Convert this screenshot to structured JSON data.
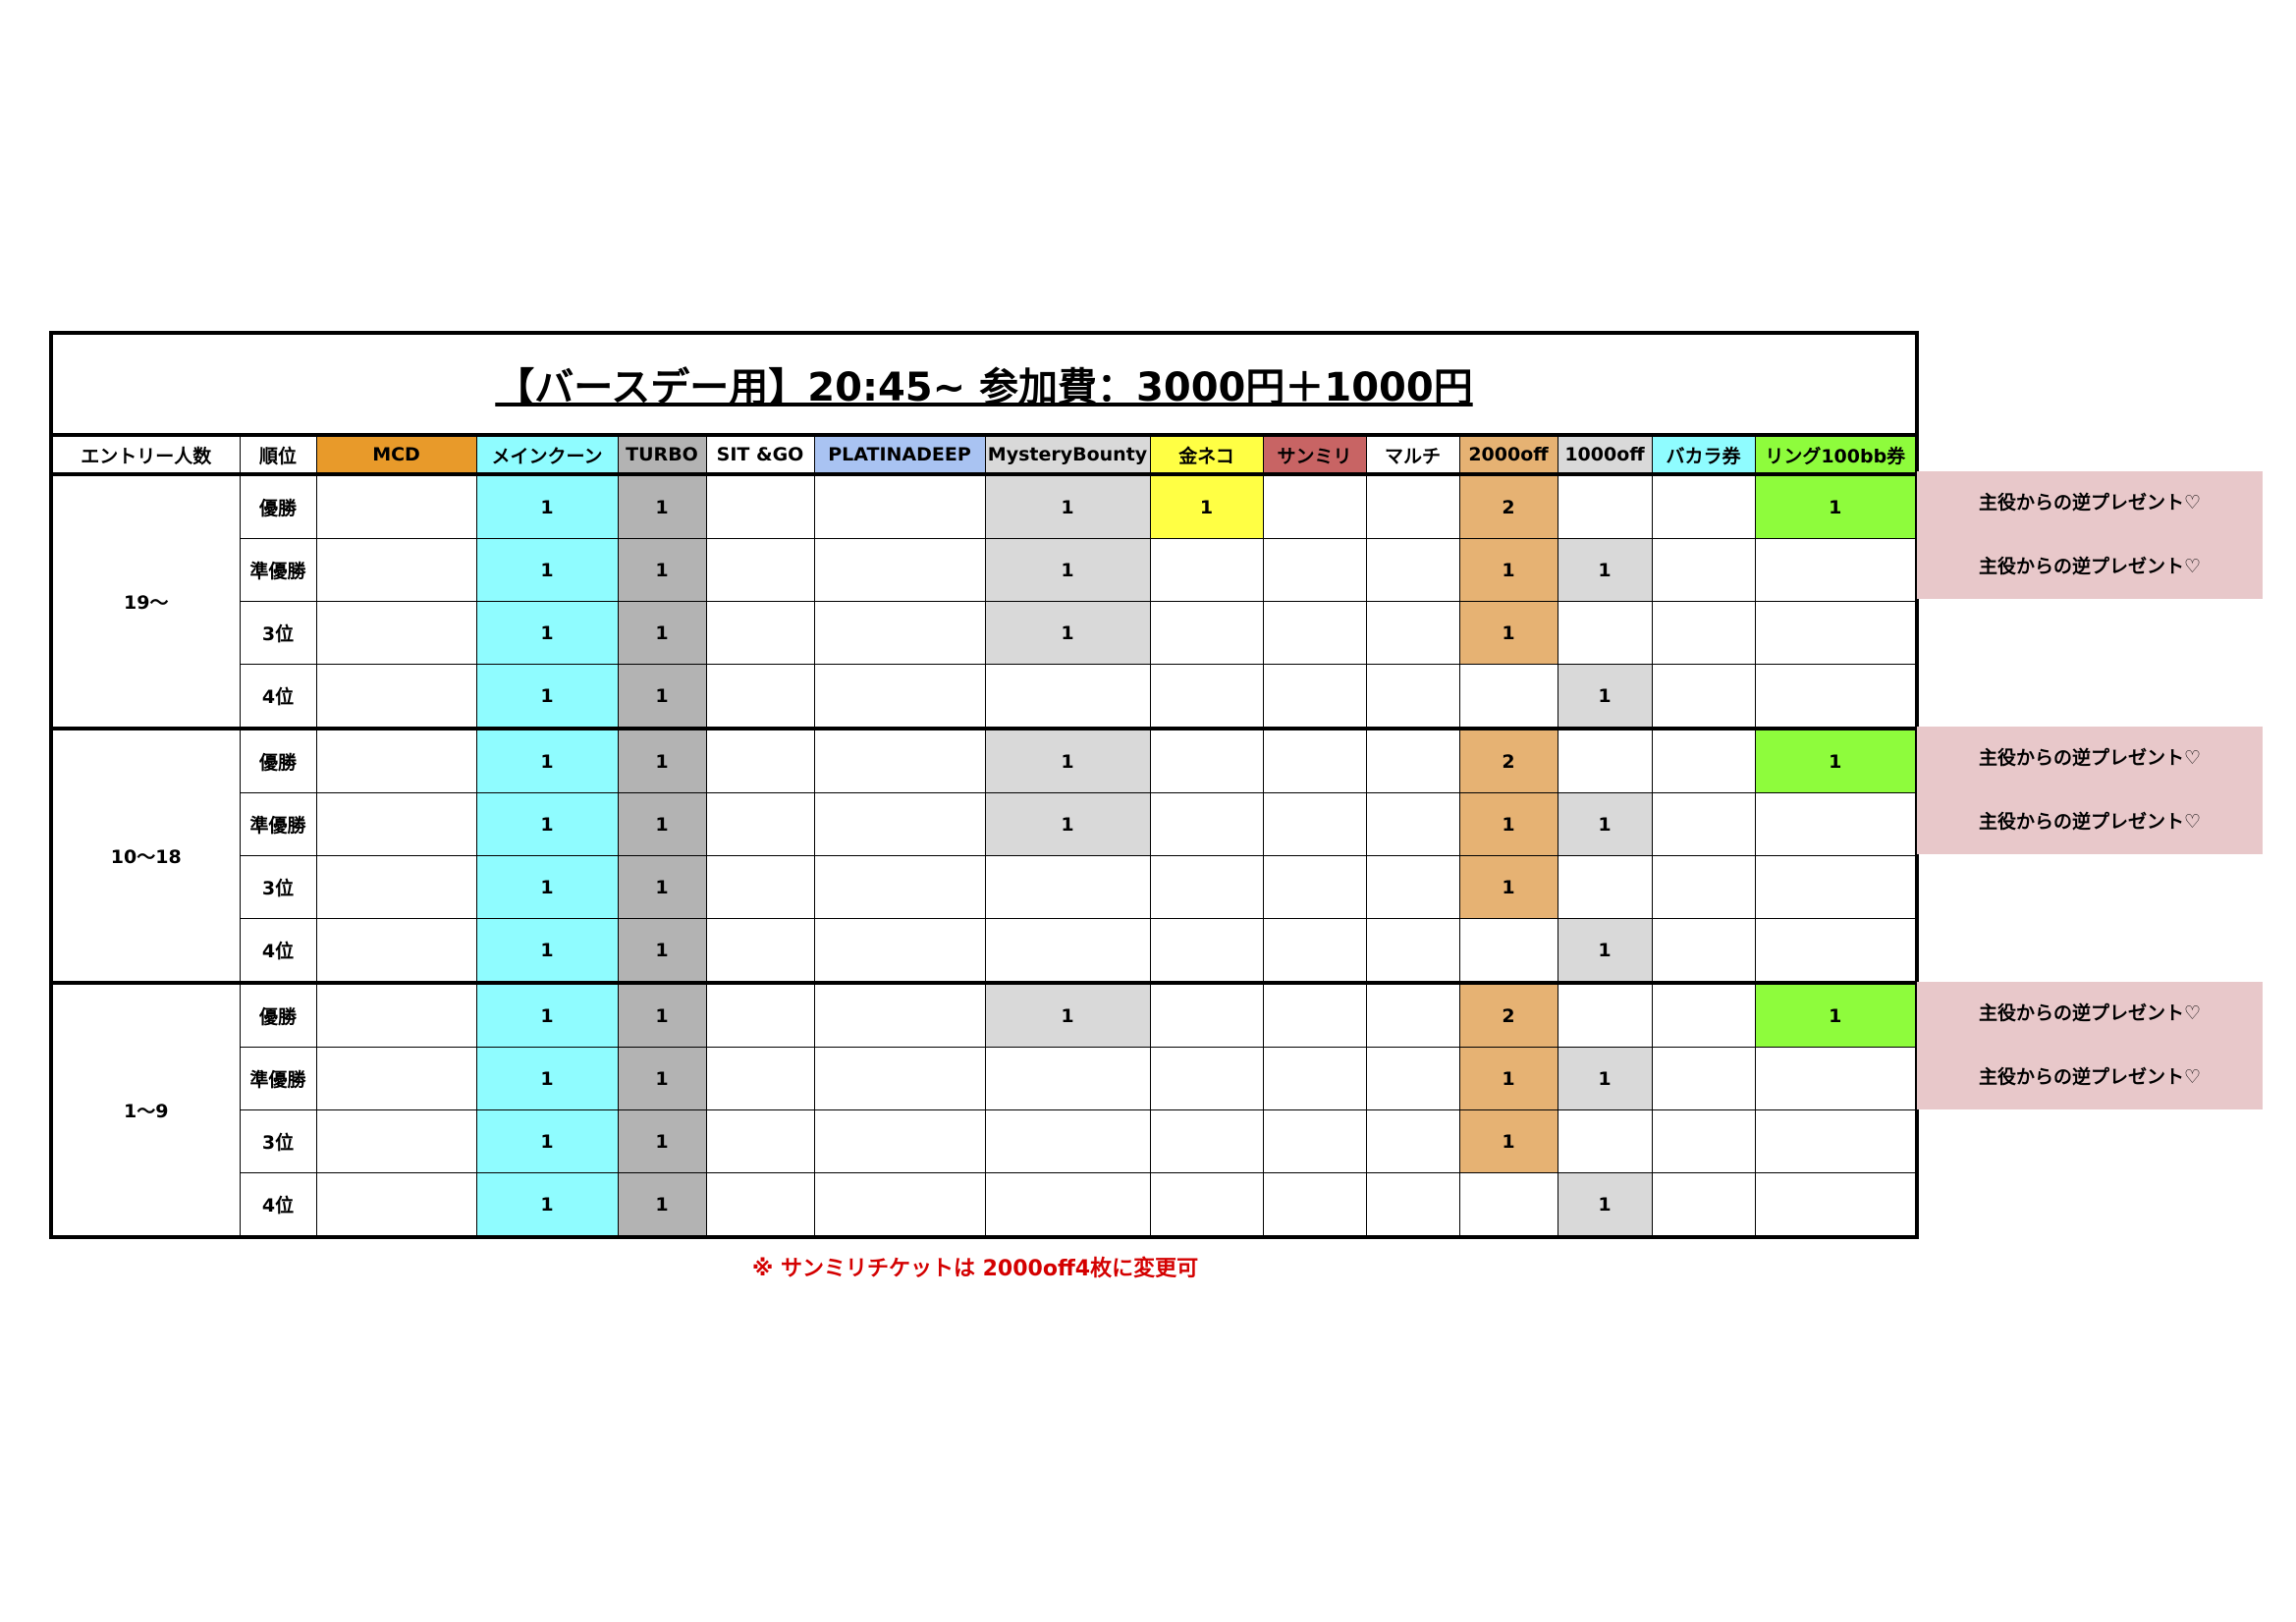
{
  "title": "【バースデー用】20:45~  参加費：3000円＋1000円",
  "headers": [
    "エントリー人数",
    "順位",
    "MCD",
    "メインクーン",
    "TURBO",
    "SIT &GO",
    "PLATINADEEP",
    "MysteryBounty",
    "金ネコ",
    "サンミリ",
    "マルチ",
    "2000off",
    "1000off",
    "バカラ券",
    "リング100bb券"
  ],
  "header_colors": [
    "#ffffff",
    "#ffffff",
    "#e89a2a",
    "#8ffcff",
    "#b3b3b3",
    "#ffffff",
    "#a9c3f2",
    "#d9d9d9",
    "#ffff44",
    "#c86464",
    "#ffffff",
    "#e6b273",
    "#d9d9d9",
    "#8ffcff",
    "#8efc3c"
  ],
  "value_colors": [
    "",
    "#8ffcff",
    "#b3b3b3",
    "",
    "",
    "#d9d9d9",
    "#ffff44",
    "",
    "",
    "#e6b273",
    "#d9d9d9",
    "",
    "#8efc3c"
  ],
  "always_colored_columns": [
    "メインクーン",
    "TURBO"
  ],
  "groups": [
    {
      "entry": "19～",
      "rows": [
        {
          "rank": "優勝",
          "cells": [
            "",
            "1",
            "1",
            "",
            "",
            "1",
            "1",
            "",
            "",
            "2",
            "",
            "",
            "1"
          ],
          "present": "主役からの逆プレゼント♡"
        },
        {
          "rank": "準優勝",
          "cells": [
            "",
            "1",
            "1",
            "",
            "",
            "1",
            "",
            "",
            "",
            "1",
            "1",
            "",
            ""
          ],
          "present": "主役からの逆プレゼント♡"
        },
        {
          "rank": "3位",
          "cells": [
            "",
            "1",
            "1",
            "",
            "",
            "1",
            "",
            "",
            "",
            "1",
            "",
            "",
            ""
          ]
        },
        {
          "rank": "4位",
          "cells": [
            "",
            "1",
            "1",
            "",
            "",
            "",
            "",
            "",
            "",
            "",
            "1",
            "",
            ""
          ]
        }
      ]
    },
    {
      "entry": "10～18",
      "rows": [
        {
          "rank": "優勝",
          "cells": [
            "",
            "1",
            "1",
            "",
            "",
            "1",
            "",
            "",
            "",
            "2",
            "",
            "",
            "1"
          ],
          "present": "主役からの逆プレゼント♡"
        },
        {
          "rank": "準優勝",
          "cells": [
            "",
            "1",
            "1",
            "",
            "",
            "1",
            "",
            "",
            "",
            "1",
            "1",
            "",
            ""
          ],
          "present": "主役からの逆プレゼント♡"
        },
        {
          "rank": "3位",
          "cells": [
            "",
            "1",
            "1",
            "",
            "",
            "",
            "",
            "",
            "",
            "1",
            "",
            "",
            ""
          ]
        },
        {
          "rank": "4位",
          "cells": [
            "",
            "1",
            "1",
            "",
            "",
            "",
            "",
            "",
            "",
            "",
            "1",
            "",
            ""
          ]
        }
      ]
    },
    {
      "entry": "1～9",
      "rows": [
        {
          "rank": "優勝",
          "cells": [
            "",
            "1",
            "1",
            "",
            "",
            "1",
            "",
            "",
            "",
            "2",
            "",
            "",
            "1"
          ],
          "present": "主役からの逆プレゼント♡"
        },
        {
          "rank": "準優勝",
          "cells": [
            "",
            "1",
            "1",
            "",
            "",
            "",
            "",
            "",
            "",
            "1",
            "1",
            "",
            ""
          ],
          "present": "主役からの逆プレゼント♡"
        },
        {
          "rank": "3位",
          "cells": [
            "",
            "1",
            "1",
            "",
            "",
            "",
            "",
            "",
            "",
            "1",
            "",
            "",
            ""
          ]
        },
        {
          "rank": "4位",
          "cells": [
            "",
            "1",
            "1",
            "",
            "",
            "",
            "",
            "",
            "",
            "",
            "1",
            "",
            ""
          ]
        }
      ]
    }
  ],
  "note": "※  サンミリチケットは  2000off4枚に変更可"
}
